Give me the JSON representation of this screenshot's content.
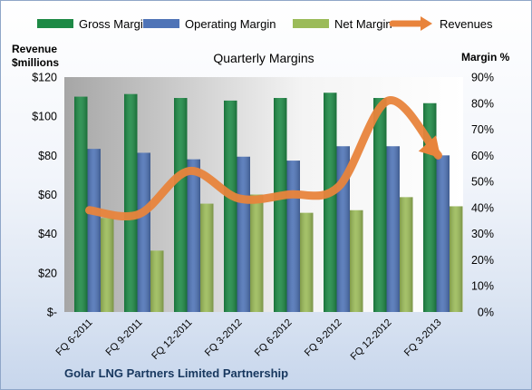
{
  "chart_data": {
    "type": "bar",
    "title": "Quarterly Margins",
    "company": "Golar LNG Partners Limited Partnership",
    "y_left_label": [
      "Revenue",
      "$millions"
    ],
    "y_right_label": "Margin %",
    "categories": [
      "FQ 6-2011",
      "FQ 9-2011",
      "FQ 12-2011",
      "FQ 3-2012",
      "FQ 6-2012",
      "FQ 9-2012",
      "FQ 12-2012",
      "FQ 3-2013"
    ],
    "series": [
      {
        "name": "Gross Margin",
        "axis": "right",
        "color": "#1e8a46",
        "values": [
          82.5,
          83.5,
          82,
          81,
          82,
          84,
          82,
          80
        ]
      },
      {
        "name": "Operating Margin",
        "axis": "right",
        "color": "#4f74b7",
        "values": [
          62.5,
          61,
          58.5,
          59.5,
          58,
          63.5,
          63.5,
          60
        ]
      },
      {
        "name": "Net Margin",
        "axis": "right",
        "color": "#9bbb59",
        "values": [
          36,
          23.5,
          41.5,
          45,
          38,
          39,
          44,
          40.5
        ]
      },
      {
        "name": "Revenues",
        "axis": "left",
        "color": "#e8843c",
        "values": [
          52,
          50,
          72,
          58,
          60,
          64,
          108,
          80
        ]
      }
    ],
    "y_left": {
      "min": 0,
      "max": 120,
      "ticks": [
        "$-",
        "$20",
        "$40",
        "$60",
        "$80",
        "$100",
        "$120"
      ]
    },
    "y_right": {
      "min": 0,
      "max": 90,
      "ticks": [
        "0%",
        "10%",
        "20%",
        "30%",
        "40%",
        "50%",
        "60%",
        "70%",
        "80%",
        "90%"
      ]
    },
    "legend_position": "top",
    "grid": false
  }
}
